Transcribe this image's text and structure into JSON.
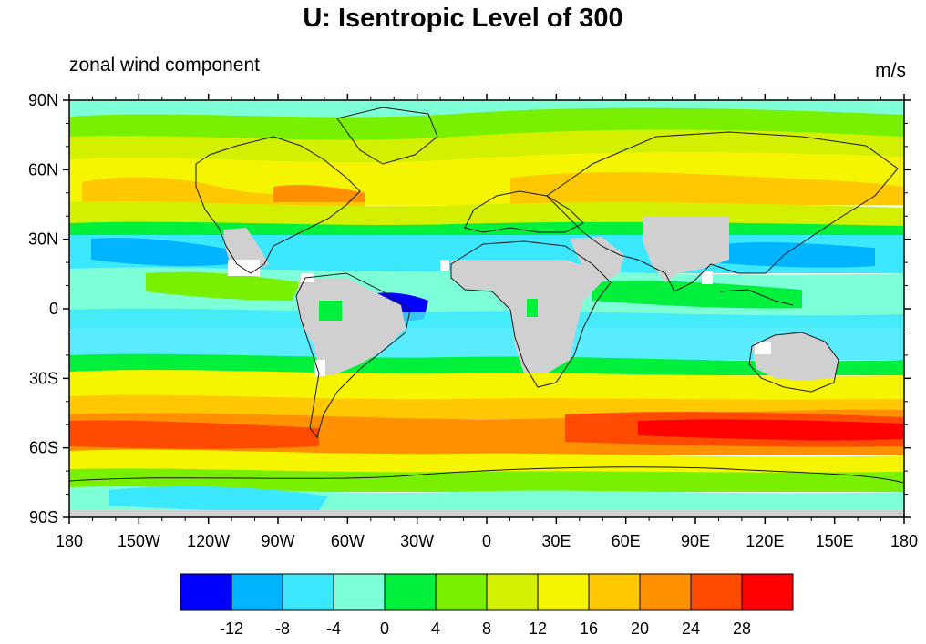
{
  "title": "U: Isentropic Level of 300",
  "subtitle_left": "zonal wind component",
  "subtitle_right": "m/s",
  "lat_labels": [
    "90N",
    "60N",
    "30N",
    "0",
    "30S",
    "60S",
    "90S"
  ],
  "lon_labels": [
    "180",
    "150W",
    "120W",
    "90W",
    "60W",
    "30W",
    "0",
    "30E",
    "60E",
    "90E",
    "120E",
    "150E",
    "180"
  ],
  "colorbar": {
    "colors": [
      "#0000ff",
      "#00b4ff",
      "#3ce8ff",
      "#7dffd8",
      "#00f03c",
      "#78f000",
      "#d2f000",
      "#f5f500",
      "#ffc800",
      "#ff9100",
      "#ff4b00",
      "#ff0000"
    ],
    "labels": [
      "-12",
      "-8",
      "-4",
      "0",
      "4",
      "8",
      "12",
      "16",
      "20",
      "24",
      "28"
    ]
  },
  "legend_colors": {
    "missing": "#d0d0d0",
    "coast": "#1a1a1a"
  }
}
